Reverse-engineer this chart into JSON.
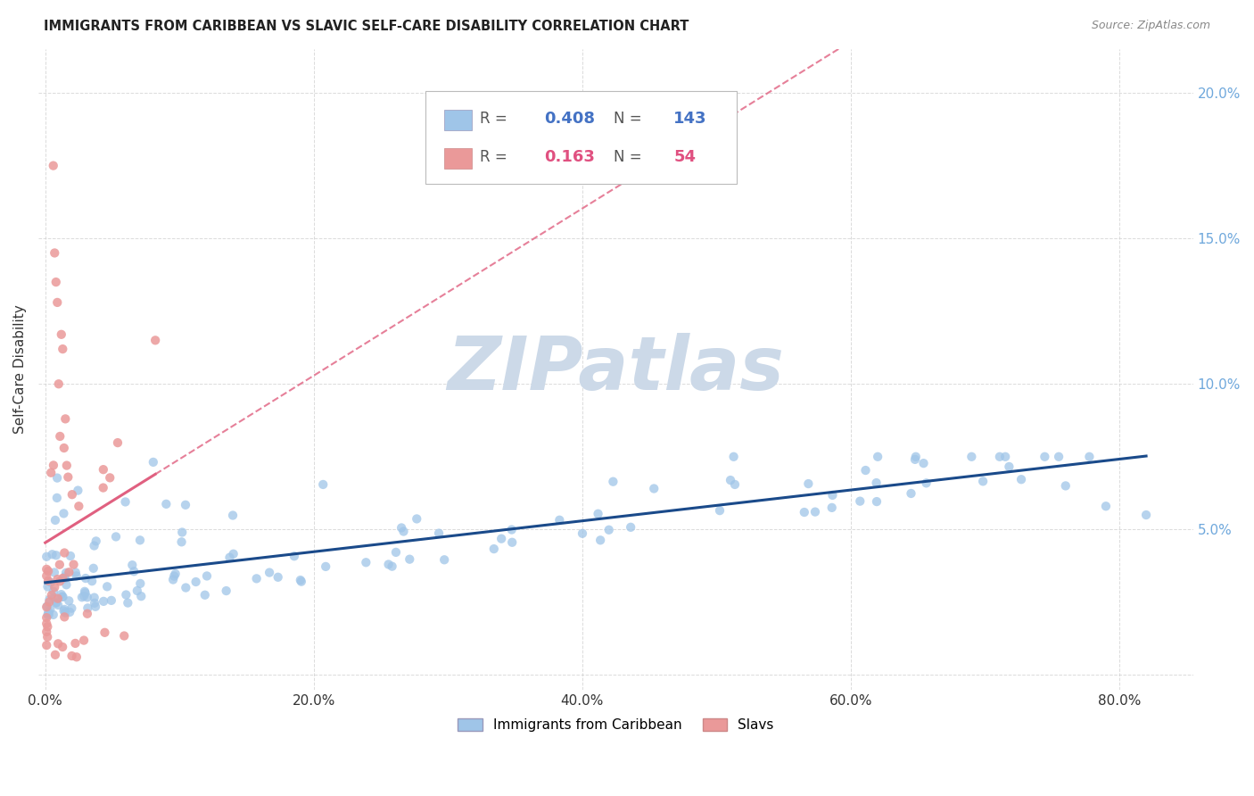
{
  "title": "IMMIGRANTS FROM CARIBBEAN VS SLAVIC SELF-CARE DISABILITY CORRELATION CHART",
  "source": "Source: ZipAtlas.com",
  "ylabel": "Self-Care Disability",
  "legend_caribbean": "Immigrants from Caribbean",
  "legend_slavs": "Slavs",
  "r_caribbean": 0.408,
  "n_caribbean": 143,
  "r_slavs": 0.163,
  "n_slavs": 54,
  "color_caribbean": "#9fc5e8",
  "color_slavs": "#ea9999",
  "color_trendline_caribbean": "#1a4a8a",
  "color_trendline_slavs": "#e06080",
  "color_right_axis": "#6fa8dc",
  "ylim_min": -0.005,
  "ylim_max": 0.215,
  "xlim_min": -0.005,
  "xlim_max": 0.855,
  "yticks": [
    0.0,
    0.05,
    0.1,
    0.15,
    0.2
  ],
  "ytick_labels": [
    "",
    "5.0%",
    "10.0%",
    "15.0%",
    "20.0%"
  ],
  "xticks": [
    0.0,
    0.2,
    0.4,
    0.6,
    0.8
  ],
  "xtick_labels": [
    "0.0%",
    "20.0%",
    "40.0%",
    "60.0%",
    "80.0%"
  ],
  "background_color": "#ffffff",
  "grid_color": "#cccccc",
  "watermark_text": "ZIPatlas",
  "watermark_color": "#ccd9e8",
  "seed_caribbean": 42,
  "seed_slavs": 7
}
